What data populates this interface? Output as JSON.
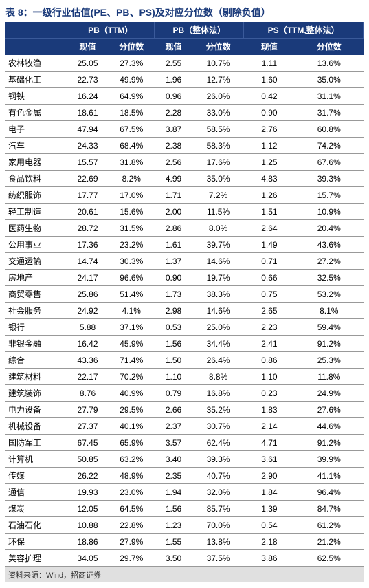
{
  "title": "表 8：一级行业估值(PE、PB、PS)及对应分位数（剔除负值）",
  "footer": "资料来源：Wind，招商证券",
  "colors": {
    "title_color": "#1a3a7a",
    "header_bg": "#1a3a7a",
    "header_fg": "#ffffff",
    "row_border": "#999999",
    "footer_bg": "#e0e0e0",
    "body_bg": "#ffffff"
  },
  "typography": {
    "title_fontsize": 14,
    "header_fontsize": 12,
    "cell_fontsize": 12,
    "footer_fontsize": 11
  },
  "header_groups": [
    "",
    "PB（TTM）",
    "PB（整体法）",
    "PS（TTM,整体法）"
  ],
  "sub_headers": [
    "",
    "现值",
    "分位数",
    "现值",
    "分位数",
    "现值",
    "分位数"
  ],
  "rows": [
    {
      "label": "农林牧渔",
      "c": [
        "25.05",
        "27.3%",
        "2.55",
        "10.7%",
        "1.11",
        "13.6%"
      ]
    },
    {
      "label": "基础化工",
      "c": [
        "22.73",
        "49.9%",
        "1.96",
        "12.7%",
        "1.60",
        "35.0%"
      ]
    },
    {
      "label": "钢铁",
      "c": [
        "16.24",
        "64.9%",
        "0.96",
        "26.0%",
        "0.42",
        "31.1%"
      ]
    },
    {
      "label": "有色金属",
      "c": [
        "18.61",
        "18.5%",
        "2.28",
        "33.0%",
        "0.90",
        "31.7%"
      ]
    },
    {
      "label": "电子",
      "c": [
        "47.94",
        "67.5%",
        "3.87",
        "58.5%",
        "2.76",
        "60.8%"
      ]
    },
    {
      "label": "汽车",
      "c": [
        "24.33",
        "68.4%",
        "2.38",
        "58.3%",
        "1.12",
        "74.2%"
      ]
    },
    {
      "label": "家用电器",
      "c": [
        "15.57",
        "31.8%",
        "2.56",
        "17.6%",
        "1.25",
        "67.6%"
      ]
    },
    {
      "label": "食品饮料",
      "c": [
        "22.69",
        "8.2%",
        "4.99",
        "35.0%",
        "4.83",
        "39.3%"
      ]
    },
    {
      "label": "纺织服饰",
      "c": [
        "17.77",
        "17.0%",
        "1.71",
        "7.2%",
        "1.26",
        "15.7%"
      ]
    },
    {
      "label": "轻工制造",
      "c": [
        "20.61",
        "15.6%",
        "2.00",
        "11.5%",
        "1.51",
        "10.9%"
      ]
    },
    {
      "label": "医药生物",
      "c": [
        "28.72",
        "31.5%",
        "2.86",
        "8.0%",
        "2.64",
        "20.4%"
      ]
    },
    {
      "label": "公用事业",
      "c": [
        "17.36",
        "23.2%",
        "1.61",
        "39.7%",
        "1.49",
        "43.6%"
      ]
    },
    {
      "label": "交通运输",
      "c": [
        "14.74",
        "30.3%",
        "1.37",
        "14.6%",
        "0.71",
        "27.2%"
      ]
    },
    {
      "label": "房地产",
      "c": [
        "24.17",
        "96.6%",
        "0.90",
        "19.7%",
        "0.66",
        "32.5%"
      ]
    },
    {
      "label": "商贸零售",
      "c": [
        "25.86",
        "51.4%",
        "1.73",
        "38.3%",
        "0.75",
        "53.2%"
      ]
    },
    {
      "label": "社会服务",
      "c": [
        "24.92",
        "4.1%",
        "2.98",
        "14.6%",
        "2.65",
        "8.1%"
      ]
    },
    {
      "label": "银行",
      "c": [
        "5.88",
        "37.1%",
        "0.53",
        "25.0%",
        "2.23",
        "59.4%"
      ]
    },
    {
      "label": "非银金融",
      "c": [
        "16.42",
        "45.9%",
        "1.56",
        "34.4%",
        "2.41",
        "91.2%"
      ]
    },
    {
      "label": "综合",
      "c": [
        "43.36",
        "71.4%",
        "1.50",
        "26.4%",
        "0.86",
        "25.3%"
      ]
    },
    {
      "label": "建筑材料",
      "c": [
        "22.17",
        "70.2%",
        "1.10",
        "8.8%",
        "1.10",
        "11.8%"
      ]
    },
    {
      "label": "建筑装饰",
      "c": [
        "8.76",
        "40.9%",
        "0.79",
        "16.8%",
        "0.23",
        "24.9%"
      ]
    },
    {
      "label": "电力设备",
      "c": [
        "27.79",
        "29.5%",
        "2.66",
        "35.2%",
        "1.83",
        "27.6%"
      ]
    },
    {
      "label": "机械设备",
      "c": [
        "27.37",
        "40.1%",
        "2.37",
        "30.7%",
        "2.14",
        "44.6%"
      ]
    },
    {
      "label": "国防军工",
      "c": [
        "67.45",
        "65.9%",
        "3.57",
        "62.4%",
        "4.71",
        "91.2%"
      ]
    },
    {
      "label": "计算机",
      "c": [
        "50.85",
        "63.2%",
        "3.40",
        "39.3%",
        "3.61",
        "39.9%"
      ]
    },
    {
      "label": "传媒",
      "c": [
        "26.22",
        "48.9%",
        "2.35",
        "40.7%",
        "2.90",
        "41.1%"
      ]
    },
    {
      "label": "通信",
      "c": [
        "19.93",
        "23.0%",
        "1.94",
        "32.0%",
        "1.84",
        "96.4%"
      ]
    },
    {
      "label": "煤炭",
      "c": [
        "12.05",
        "64.5%",
        "1.56",
        "85.7%",
        "1.39",
        "84.7%"
      ]
    },
    {
      "label": "石油石化",
      "c": [
        "10.88",
        "22.8%",
        "1.23",
        "70.0%",
        "0.54",
        "61.2%"
      ]
    },
    {
      "label": "环保",
      "c": [
        "18.86",
        "27.9%",
        "1.55",
        "13.8%",
        "2.18",
        "21.2%"
      ]
    },
    {
      "label": "美容护理",
      "c": [
        "34.05",
        "29.7%",
        "3.50",
        "37.5%",
        "3.86",
        "62.5%"
      ]
    }
  ]
}
